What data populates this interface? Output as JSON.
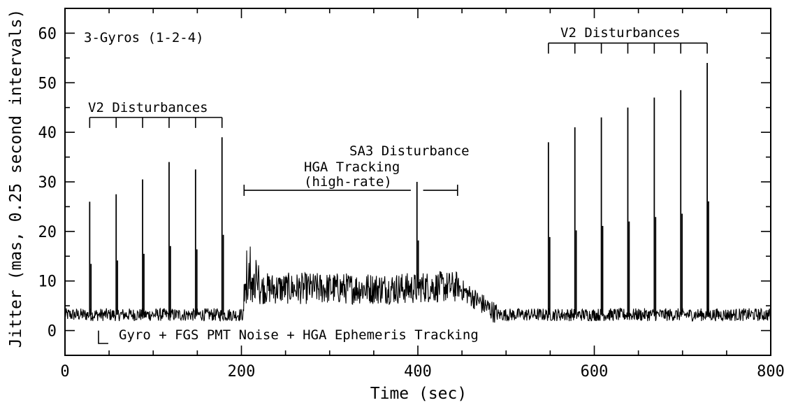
{
  "chart_data": {
    "type": "line",
    "title": "",
    "xlabel": "Time (sec)",
    "ylabel": "Jitter (mas, 0.25 second intervals)",
    "xlim": [
      0,
      800
    ],
    "ylim": [
      -5,
      65
    ],
    "x_ticks": [
      0,
      200,
      400,
      600,
      800
    ],
    "y_ticks": [
      0,
      10,
      20,
      30,
      40,
      50,
      60
    ],
    "grid": false,
    "legend": "none",
    "baseline_level": 3,
    "segments": [
      {
        "x_start": 0,
        "x_end": 203,
        "level": 3.2
      },
      {
        "x_start": 203,
        "x_end": 400,
        "level": 8.5
      },
      {
        "x_start": 400,
        "x_end": 445,
        "level": 8.8
      },
      {
        "x_start": 445,
        "x_end": 490,
        "level": 5
      },
      {
        "x_start": 490,
        "x_end": 800,
        "level": 3.2
      }
    ],
    "spikes": [
      {
        "x": 28,
        "y": 26
      },
      {
        "x": 58,
        "y": 27.5
      },
      {
        "x": 88,
        "y": 30.5
      },
      {
        "x": 118,
        "y": 34
      },
      {
        "x": 148,
        "y": 32.5
      },
      {
        "x": 178,
        "y": 39
      },
      {
        "x": 399,
        "y": 30
      },
      {
        "x": 548,
        "y": 38
      },
      {
        "x": 578,
        "y": 41
      },
      {
        "x": 608,
        "y": 43
      },
      {
        "x": 638,
        "y": 45
      },
      {
        "x": 668,
        "y": 47
      },
      {
        "x": 698,
        "y": 48.5
      },
      {
        "x": 728,
        "y": 54
      }
    ],
    "annotations": {
      "gyros": "3-Gyros (1-2-4)",
      "v2_left": "V2 Disturbances",
      "v2_right": "V2 Disturbances",
      "sa3": "SA3 Disturbance",
      "hga_line1": "HGA Tracking",
      "hga_line2": "(high-rate)",
      "noise": "Gyro + FGS PMT Noise + HGA Ephemeris Tracking"
    },
    "brackets": {
      "v2_left": {
        "x_start": 28,
        "x_end": 178,
        "y": 43,
        "ticks": [
          28,
          58,
          88,
          118,
          148,
          178
        ]
      },
      "v2_right": {
        "x_start": 548,
        "x_end": 728,
        "y": 58,
        "ticks": [
          548,
          578,
          608,
          638,
          668,
          698,
          728
        ]
      },
      "hga": {
        "x_start": 203,
        "x_end": 445,
        "gap": [
          392,
          406
        ],
        "y": 28.3
      },
      "noise_marker": {
        "x": 38,
        "y_top": 0,
        "y_bottom": -2.6
      }
    }
  }
}
